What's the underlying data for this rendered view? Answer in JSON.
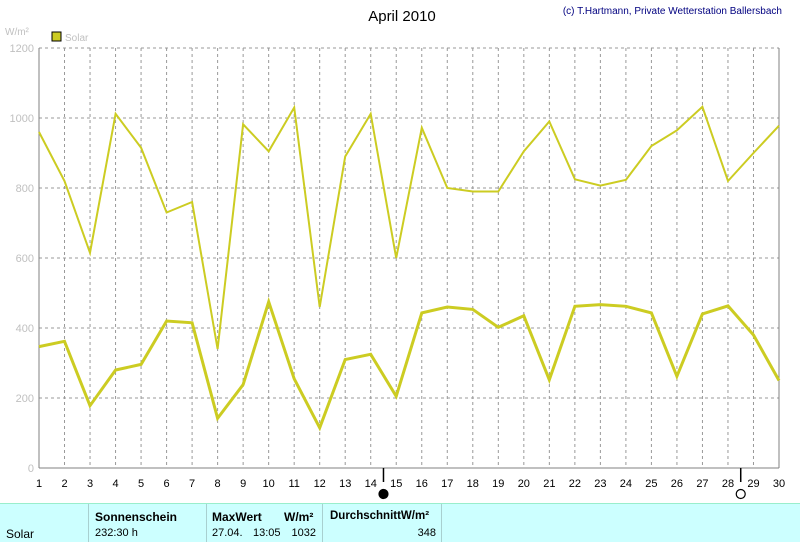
{
  "chart_data": {
    "type": "line",
    "title": "April 2010",
    "credit": "(c) T.Hartmann, Private Wetterstation Ballersbach",
    "ylabel": "W/m²",
    "ylim": [
      0,
      1200
    ],
    "yticks": [
      "0",
      "200",
      "400",
      "600",
      "800",
      "1000",
      "1200"
    ],
    "x": [
      "1",
      "2",
      "3",
      "4",
      "5",
      "6",
      "7",
      "8",
      "9",
      "10",
      "11",
      "12",
      "13",
      "14",
      "15",
      "16",
      "17",
      "18",
      "19",
      "20",
      "21",
      "22",
      "23",
      "24",
      "25",
      "26",
      "27",
      "28",
      "29",
      "30"
    ],
    "grid": true,
    "legend": {
      "label": "Solar",
      "placement": "top-left"
    },
    "series": [
      {
        "name": "Solar",
        "role": "maximum",
        "values": [
          960,
          820,
          615,
          1012,
          915,
          730,
          760,
          340,
          982,
          905,
          1030,
          460,
          890,
          1012,
          600,
          972,
          800,
          790,
          790,
          905,
          990,
          825,
          807,
          823,
          920,
          965,
          1032,
          820,
          900,
          978
        ]
      },
      {
        "name": "Solar",
        "role": "average",
        "values": [
          347,
          362,
          178,
          280,
          296,
          420,
          415,
          142,
          238,
          475,
          255,
          115,
          310,
          325,
          205,
          443,
          460,
          453,
          402,
          435,
          252,
          462,
          467,
          462,
          443,
          262,
          440,
          463,
          380,
          250
        ]
      }
    ],
    "moon_markers": [
      {
        "x": 15,
        "phase": "new moon"
      },
      {
        "x": 29,
        "phase": "full moon"
      }
    ],
    "colors": {
      "line": "#cccc22",
      "grid": "#999999",
      "axis": "#808080",
      "legend_box": "#cccc22"
    }
  },
  "stats": {
    "row_label": "Solar",
    "sunshine": {
      "header": "Sonnenschein",
      "value": "232:30 h"
    },
    "max": {
      "header": "MaxWert",
      "unit": "W/m²",
      "date": "27.04.",
      "time": "13:05",
      "value": "1032"
    },
    "average": {
      "header": "DurchschnittW/m²",
      "value": "348"
    }
  }
}
